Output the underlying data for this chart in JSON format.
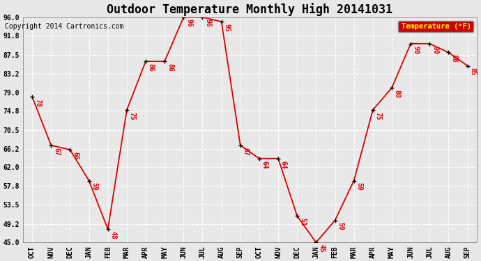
{
  "title": "Outdoor Temperature Monthly High 20141031",
  "copyright": "Copyright 2014 Cartronics.com",
  "legend_label": "Temperature (°F)",
  "x_labels": [
    "OCT",
    "NOV",
    "DEC",
    "JAN",
    "FEB",
    "MAR",
    "APR",
    "MAY",
    "JUN",
    "JUL",
    "AUG",
    "SEP",
    "OCT",
    "NOV",
    "DEC",
    "JAN",
    "FEB",
    "MAR",
    "APR",
    "MAY",
    "JUN",
    "JUL",
    "AUG",
    "SEP"
  ],
  "values": [
    78,
    67,
    66,
    59,
    48,
    75,
    86,
    86,
    96,
    96,
    95,
    67,
    64,
    64,
    51,
    45,
    50,
    59,
    75,
    80,
    90,
    90,
    88,
    85
  ],
  "ylim": [
    45.0,
    96.0
  ],
  "ytick_values": [
    45.0,
    49.2,
    53.5,
    57.8,
    62.0,
    66.2,
    70.5,
    74.8,
    79.0,
    83.2,
    87.5,
    91.8,
    96.0
  ],
  "ytick_labels": [
    "45.0",
    "49.2",
    "53.5",
    "57.8",
    "62.0",
    "66.2",
    "70.5",
    "74.8",
    "79.0",
    "83.2",
    "87.5",
    "91.8",
    "96.0"
  ],
  "line_color": "#dd0000",
  "marker_color": "#000000",
  "label_color": "#dd0000",
  "background_color": "#e8e8e8",
  "plot_bg_color": "#e8e8e8",
  "grid_color": "#ffffff",
  "legend_bg": "#cc0000",
  "legend_fg": "#ffff00",
  "title_fontsize": 12,
  "copyright_fontsize": 7,
  "tick_fontsize": 7,
  "label_fontsize": 7
}
